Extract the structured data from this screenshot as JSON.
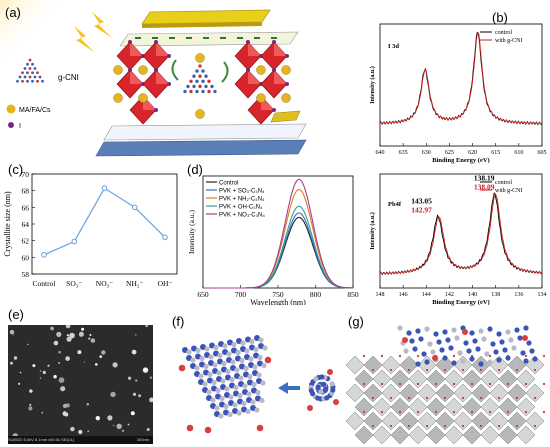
{
  "panel_labels": [
    "(a)",
    "(b)",
    "(c)",
    "(d)",
    "(e)",
    "(f)",
    "(g)"
  ],
  "panel_a": {
    "molecule_label": "g-CNI",
    "legend": [
      {
        "label": "MA/FA/Cs",
        "color": "#e6b422"
      },
      {
        "label": "I",
        "color": "#7a2a7a"
      }
    ]
  },
  "colors": {
    "octahedron": "#d8242b",
    "a_site": "#e6b422",
    "iodide": "#7a2a7a",
    "substrate": "#5a7fb8",
    "gold": "#e0c020",
    "measured": "#000000",
    "fit": "#cc2222"
  },
  "charts": {
    "b_top": {
      "type": "line",
      "legend": [
        "control",
        "with g-CNI"
      ],
      "annotation": "I 3d",
      "xlabel": "Binding Energy (eV)",
      "ylabel": "Intensity (a.u.)",
      "xlim": [
        640,
        605
      ],
      "xticks": [
        640,
        635,
        630,
        625,
        620,
        615,
        610,
        605
      ],
      "peaks": [
        {
          "x": 630.3,
          "height": 0.62
        },
        {
          "x": 618.9,
          "height": 0.93
        }
      ],
      "baseline": 0.18
    },
    "b_bottom": {
      "type": "line",
      "legend": [
        "control",
        "with g-CNI"
      ],
      "annotation": "Pb4f",
      "xlabel": "Binding Energy (eV)",
      "ylabel": "Intensity (a.u.)",
      "xlim": [
        148,
        134
      ],
      "xticks": [
        148,
        146,
        144,
        142,
        140,
        138,
        136,
        134
      ],
      "peak_labels": [
        {
          "control": "143.05",
          "with": "142.97"
        },
        {
          "control": "138.19",
          "with": "138.09"
        }
      ],
      "peaks": [
        {
          "x": 143.0,
          "height": 0.62
        },
        {
          "x": 138.1,
          "height": 0.82
        }
      ],
      "baseline": 0.12
    },
    "c": {
      "type": "line",
      "categories": [
        "Control",
        "SO₃⁻",
        "NO₃⁻",
        "NH₂⁻",
        "OH⁻"
      ],
      "values": [
        60.3,
        61.9,
        68.3,
        66.0,
        62.4
      ],
      "ylabel": "Crystallite size (nm)",
      "ylim": [
        58,
        70
      ],
      "yticks": [
        58,
        60,
        62,
        64,
        66,
        68,
        70
      ]
    },
    "d": {
      "type": "line",
      "xlabel": "Wavelength (nm)",
      "ylabel": "Intensity (a.u.)",
      "xlim": [
        650,
        850
      ],
      "xticks": [
        650,
        700,
        750,
        800,
        850
      ],
      "peak_center": 778,
      "series": [
        {
          "name": "Control",
          "color": "#222222",
          "peak": 0.63
        },
        {
          "name": "PVK + SO₃-C₃N₄",
          "color": "#3a6fc2",
          "peak": 0.67
        },
        {
          "name": "PVK + NH₂-C₃N₄",
          "color": "#e07a20",
          "peak": 0.88
        },
        {
          "name": "PVK + OH-C₃N₄",
          "color": "#2aa39a",
          "peak": 0.73
        },
        {
          "name": "PVK + NO₃-C₃N₄",
          "color": "#a83c8c",
          "peak": 0.97
        }
      ]
    }
  },
  "panel_e": {
    "sem_caption": "SU8020 5.0kV 8.1mm x50.0k SE(UL)",
    "scale_text": "300nm"
  }
}
